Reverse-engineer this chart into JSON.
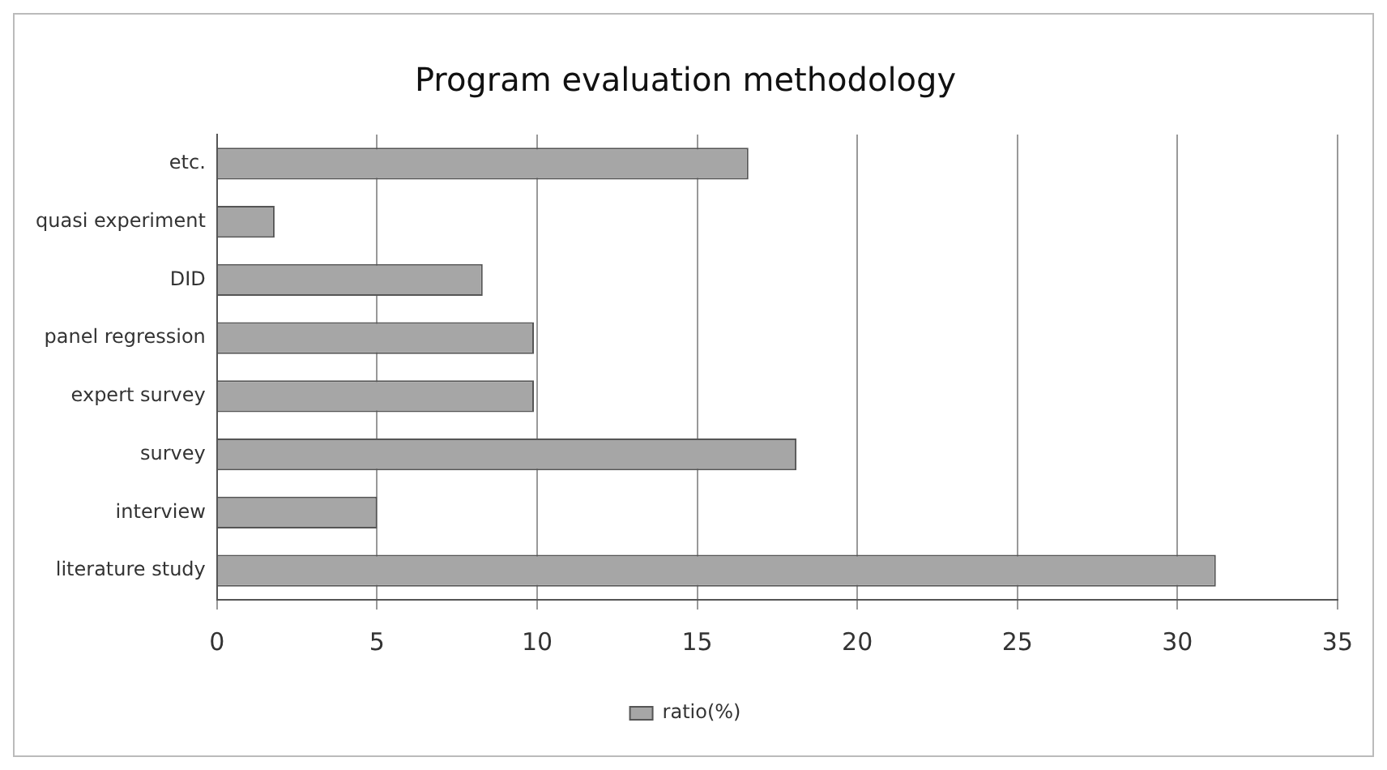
{
  "chart_data": {
    "type": "bar",
    "orientation": "horizontal",
    "title": "Program evaluation methodology",
    "categories": [
      "etc.",
      "quasi experiment",
      "DID",
      "panel regression",
      "expert survey",
      "survey",
      "interview",
      "literature study"
    ],
    "series": [
      {
        "name": "ratio(%)",
        "color": "#a6a6a6",
        "values": [
          16.6,
          1.8,
          8.3,
          9.9,
          9.9,
          18.1,
          5.0,
          31.2
        ]
      }
    ],
    "xlim": [
      0,
      35
    ],
    "xticks": [
      0,
      5,
      10,
      15,
      20,
      25,
      30,
      35
    ],
    "grid": "x",
    "legend": "bottom"
  }
}
